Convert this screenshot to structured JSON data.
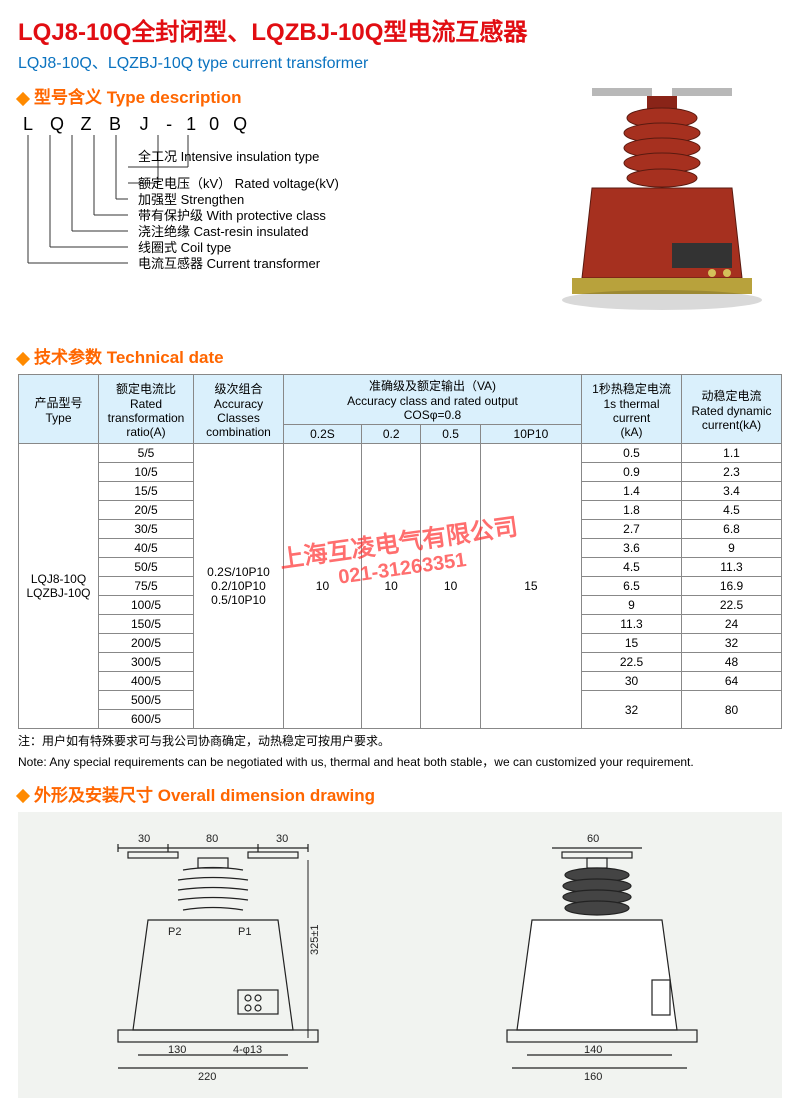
{
  "title_cn": "LQJ8-10Q全封闭型、LQZBJ-10Q型电流互感器",
  "title_en": "LQJ8-10Q、LQZBJ-10Q type current transformer",
  "sections": {
    "type_desc": "型号含义 Type description",
    "tech": "技术参数 Technical date",
    "dims": "外形及安装尺寸 Overall dimension drawing"
  },
  "model_code": {
    "letters": [
      "L",
      "Q",
      "Z",
      "B",
      "J",
      "-",
      "1",
      "0",
      "Q"
    ]
  },
  "type_meanings": [
    "全工况  Intensive insulation type",
    "额定电压（kV） Rated voltage(kV)",
    "加强型  Strengthen",
    "带有保护级  With protective class",
    "浇注绝缘  Cast-resin insulated",
    "线圈式  Coil type",
    "电流互感器  Current transformer"
  ],
  "table": {
    "headers": {
      "type": "产品型号\nType",
      "ratio": "额定电流比\nRated\ntransformation\nratio(A)",
      "acc": "级次组合\nAccuracy\nClasses\ncombination",
      "accout": "准确级及额定输出（VA)\nAccuracy class and rated output\nCOSφ=0.8",
      "cols": [
        "0.2S",
        "0.2",
        "0.5",
        "10P10"
      ],
      "thermal": "1秒热稳定电流\n1s thermal current\n(kA)",
      "dynamic": "动稳定电流\nRated dynamic\ncurrent(kA)"
    },
    "type_cell": "LQJ8-10Q\nLQZBJ-10Q",
    "acc_cell": "0.2S/10P10\n0.2/10P10\n0.5/10P10",
    "out_cells": [
      "10",
      "10",
      "10",
      "15"
    ],
    "rows": [
      {
        "r": "5/5",
        "t": "0.5",
        "d": "1.1"
      },
      {
        "r": "10/5",
        "t": "0.9",
        "d": "2.3"
      },
      {
        "r": "15/5",
        "t": "1.4",
        "d": "3.4"
      },
      {
        "r": "20/5",
        "t": "1.8",
        "d": "4.5"
      },
      {
        "r": "30/5",
        "t": "2.7",
        "d": "6.8"
      },
      {
        "r": "40/5",
        "t": "3.6",
        "d": "9"
      },
      {
        "r": "50/5",
        "t": "4.5",
        "d": "11.3"
      },
      {
        "r": "75/5",
        "t": "6.5",
        "d": "16.9"
      },
      {
        "r": "100/5",
        "t": "9",
        "d": "22.5"
      },
      {
        "r": "150/5",
        "t": "11.3",
        "d": "24"
      },
      {
        "r": "200/5",
        "t": "15",
        "d": "32"
      },
      {
        "r": "300/5",
        "t": "22.5",
        "d": "48"
      },
      {
        "r": "400/5",
        "t": "30",
        "d": "64"
      },
      {
        "r": "500/5",
        "t": "32",
        "d": "80",
        "span2": true
      },
      {
        "r": "600/5"
      }
    ]
  },
  "note_cn": "注：用户如有特殊要求可与我公司协商确定，动热稳定可按用户要求。",
  "note_en": "Note: Any special requirements can be negotiated with us, thermal and heat both stable，we can customized your requirement.",
  "watermark": {
    "l1": "上海互凌电气有限公司",
    "l2": "021-31263351"
  },
  "colors": {
    "title_red": "#e10d12",
    "blue": "#0b73c0",
    "orange": "#ff6600",
    "th_bg": "#daf0fc",
    "ct_body": "#a6301f",
    "ct_dark": "#5a1a10",
    "ct_base": "#b8a23c"
  },
  "dims_labels": {
    "top": [
      "30",
      "80",
      "30",
      "60"
    ],
    "p": [
      "P2",
      "P1"
    ],
    "h": "325±1",
    "base1": [
      "130",
      "4-φ13",
      "220"
    ],
    "base2": [
      "140",
      "160"
    ]
  }
}
